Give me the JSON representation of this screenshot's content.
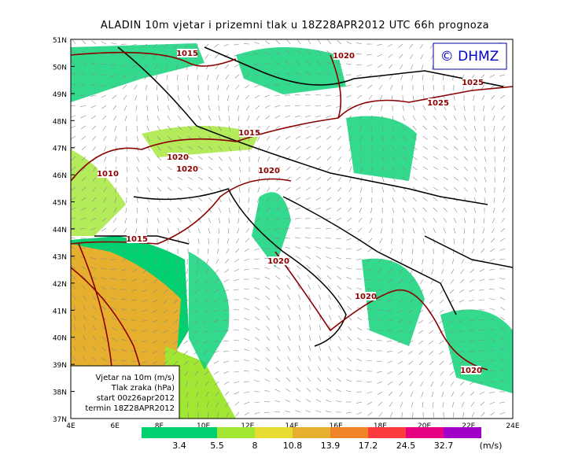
{
  "header": {
    "title": "ALADIN  10m  vjetar  i  prizemni  tlak  u  18Z28APR2012  UTC  66h  prognoza"
  },
  "logo": "© DHMZ",
  "latitude_labels": [
    "37N",
    "38N",
    "39N",
    "40N",
    "41N",
    "42N",
    "43N",
    "44N",
    "45N",
    "46N",
    "47N",
    "48N",
    "49N",
    "50N",
    "51N"
  ],
  "longitude_labels": [
    "4E",
    "6E",
    "8E",
    "10E",
    "12E",
    "14E",
    "16E",
    "18E",
    "20E",
    "22E",
    "24E"
  ],
  "isobar_labels": [
    "1015",
    "1020",
    "1025",
    "1025",
    "1015",
    "1010",
    "1020",
    "1020",
    "1020",
    "1015",
    "1020",
    "1020",
    "1020"
  ],
  "info_box": {
    "lines": [
      "Vjetar na 10m (m/s)",
      "Tlak zraka (hPa)",
      "start 00z26apr2012",
      "termin 18Z28APR2012"
    ]
  },
  "colorbar": {
    "labels": [
      "3.4",
      "5.5",
      "8",
      "10.8",
      "13.9",
      "17.2",
      "24.5",
      "32.7"
    ],
    "unit": "(m/s)",
    "colors": [
      "#00d070",
      "#a0e632",
      "#e6dc32",
      "#e6af2d",
      "#f08228",
      "#fa3c3c",
      "#e60082",
      "#a000c8"
    ]
  }
}
